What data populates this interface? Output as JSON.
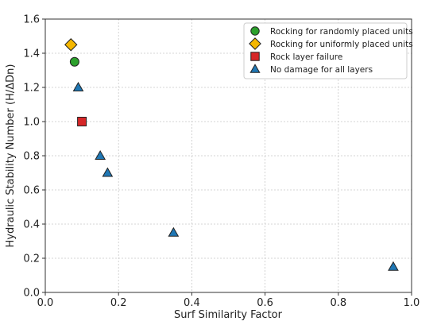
{
  "chart_data": {
    "type": "scatter",
    "xlabel": "Surf Similarity Factor",
    "ylabel": "Hydraulic Stability Number (H/ΔDn)",
    "xlim": [
      0.0,
      1.0
    ],
    "ylim": [
      0.0,
      1.6
    ],
    "x_ticks": [
      0.0,
      0.2,
      0.4,
      0.6,
      0.8,
      1.0
    ],
    "y_ticks": [
      0.0,
      0.2,
      0.4,
      0.6,
      0.8,
      1.0,
      1.2,
      1.4,
      1.6
    ],
    "x_tick_labels": [
      "0.0",
      "0.2",
      "0.4",
      "0.6",
      "0.8",
      "1.0"
    ],
    "y_tick_labels": [
      "0.0",
      "0.2",
      "0.4",
      "0.6",
      "0.8",
      "1.0",
      "1.2",
      "1.4",
      "1.6"
    ],
    "grid": true,
    "legend_position": "top-right",
    "series": [
      {
        "name": "Rocking for randomly placed units",
        "marker": "circle",
        "color": "#2ca02c",
        "points": [
          {
            "x": 0.08,
            "y": 1.35
          }
        ]
      },
      {
        "name": "Rocking for uniformly placed units",
        "marker": "diamond",
        "color": "#f5b700",
        "points": [
          {
            "x": 0.07,
            "y": 1.45
          }
        ]
      },
      {
        "name": "Rock layer failure",
        "marker": "square",
        "color": "#d62728",
        "points": [
          {
            "x": 0.1,
            "y": 1.0
          }
        ]
      },
      {
        "name": "No damage for all layers",
        "marker": "triangle",
        "color": "#1f77b4",
        "points": [
          {
            "x": 0.09,
            "y": 1.2
          },
          {
            "x": 0.15,
            "y": 0.8
          },
          {
            "x": 0.17,
            "y": 0.7
          },
          {
            "x": 0.35,
            "y": 0.35
          },
          {
            "x": 0.95,
            "y": 0.15
          }
        ]
      }
    ]
  }
}
